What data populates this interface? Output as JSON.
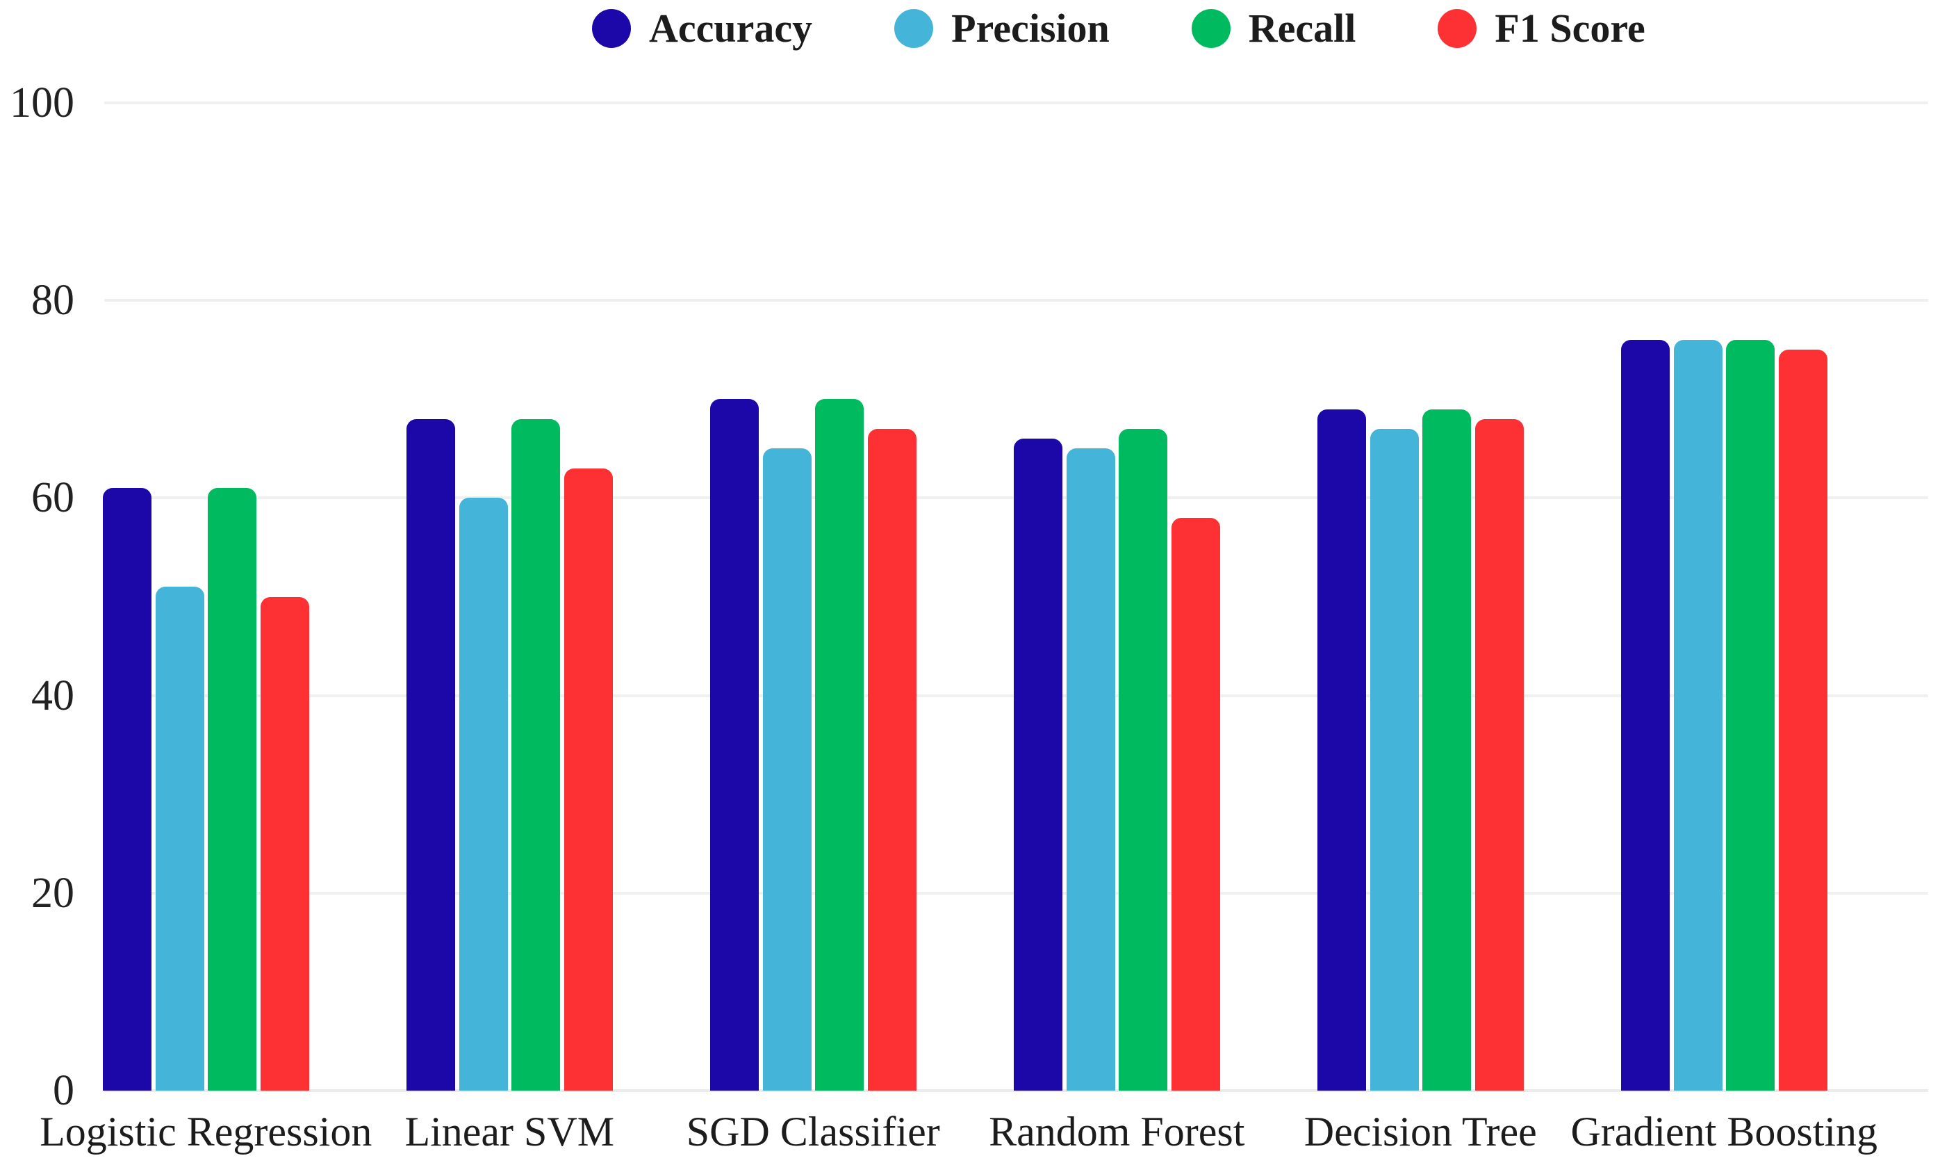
{
  "chart_data": {
    "type": "bar",
    "title": "",
    "xlabel": "",
    "ylabel": "",
    "categories": [
      "Logistic Regression",
      "Linear SVM",
      "SGD Classifier",
      "Random Forest",
      "Decision Tree",
      "Gradient Boosting"
    ],
    "series": [
      {
        "name": "Accuracy",
        "color": "#1C08A9",
        "values": [
          61,
          68,
          70,
          66,
          69,
          76
        ]
      },
      {
        "name": "Precision",
        "color": "#44B5D8",
        "values": [
          51,
          60,
          65,
          65,
          67,
          76
        ]
      },
      {
        "name": "Recall",
        "color": "#00BA60",
        "values": [
          61,
          68,
          70,
          67,
          69,
          76
        ]
      },
      {
        "name": "F1 Score",
        "color": "#FD3034",
        "values": [
          50,
          63,
          67,
          58,
          68,
          75
        ]
      }
    ],
    "ylim": [
      0,
      100
    ],
    "yticks": [
      0,
      20,
      40,
      60,
      80,
      100
    ],
    "grid": "horizontal",
    "legend_position": "top-center",
    "colors": {
      "grid_line": "#f0f0f0",
      "axis_text": "#1c1c1c",
      "background": "#ffffff"
    }
  }
}
